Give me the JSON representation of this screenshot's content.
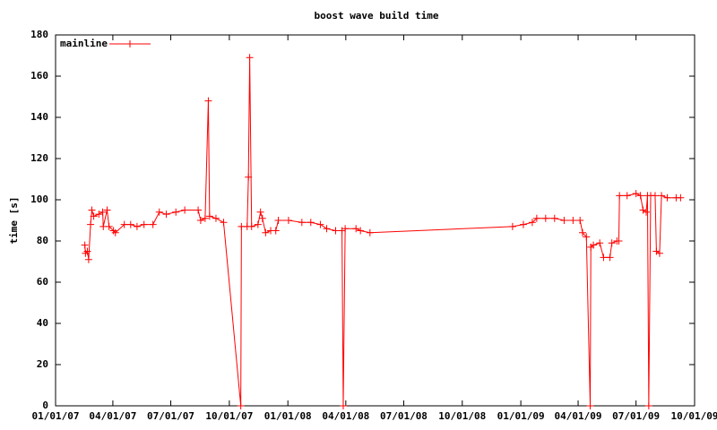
{
  "chart_data": {
    "type": "line",
    "title": "boost wave build time",
    "y_label": "time [s]",
    "x": [
      "02/16/07",
      "02/17/07",
      "02/20/07",
      "02/22/07",
      "02/25/07",
      "02/27/07",
      "03/02/07",
      "03/10/07",
      "03/16/07",
      "03/17/07",
      "03/23/07",
      "03/26/07",
      "04/02/07",
      "04/05/07",
      "04/19/07",
      "04/29/07",
      "05/09/07",
      "05/20/07",
      "06/03/07",
      "06/13/07",
      "06/24/07",
      "07/09/07",
      "07/23/07",
      "08/13/07",
      "08/17/07",
      "08/24/07",
      "08/29/07",
      "08/31/07",
      "09/10/07",
      "09/22/07",
      "10/19/07",
      "10/20/07",
      "10/29/07",
      "10/31/07",
      "11/02/07",
      "11/05/07",
      "11/15/07",
      "11/19/07",
      "11/22/07",
      "11/27/07",
      "12/05/07",
      "12/13/07",
      "12/17/07",
      "01/02/08",
      "01/23/08",
      "02/06/08",
      "02/21/08",
      "03/02/08",
      "03/16/08",
      "03/26/08",
      "03/28/08",
      "03/31/08",
      "04/17/08",
      "04/24/08",
      "05/09/08",
      "12/19/08",
      "01/05/09",
      "01/19/09",
      "01/26/09",
      "02/09/09",
      "02/23/09",
      "03/10/09",
      "03/24/09",
      "04/04/09",
      "04/08/09",
      "04/14/09",
      "04/20/09",
      "04/21/09",
      "04/25/09",
      "05/05/09",
      "05/11/09",
      "05/21/09",
      "05/24/09",
      "06/01/09",
      "06/04/09",
      "06/05/09",
      "06/17/09",
      "07/01/09",
      "07/08/09",
      "07/12/09",
      "07/17/09",
      "07/19/09",
      "07/21/09",
      "07/24/09",
      "07/31/09",
      "08/02/09",
      "08/07/09",
      "08/10/09",
      "08/19/09",
      "09/02/09",
      "09/09/09"
    ],
    "series": [
      {
        "name": "mainline",
        "color": "#ff0000",
        "values": [
          78,
          74,
          75,
          71,
          88,
          95,
          92,
          93,
          94,
          87,
          95,
          87,
          85,
          84,
          88,
          88,
          87,
          88,
          88,
          94,
          93,
          94,
          95,
          95,
          90,
          91,
          148,
          92,
          91,
          89,
          0,
          87,
          87,
          111,
          169,
          87,
          88,
          94,
          91,
          84,
          85,
          85,
          90,
          90,
          89,
          89,
          88,
          86,
          85,
          85,
          0,
          86,
          86,
          85,
          84,
          87,
          88,
          89,
          91,
          91,
          91,
          90,
          90,
          90,
          84,
          82,
          0,
          77,
          78,
          79,
          72,
          72,
          79,
          80,
          80,
          102,
          102,
          103,
          102,
          95,
          94,
          102,
          0,
          102,
          102,
          75,
          74,
          102,
          101,
          101,
          101
        ]
      }
    ],
    "xlim": [
      "01/01/07",
      "10/01/09"
    ],
    "xticks": [
      "01/01/07",
      "04/01/07",
      "07/01/07",
      "10/01/07",
      "01/01/08",
      "04/01/08",
      "07/01/08",
      "10/01/08",
      "01/01/09",
      "04/01/09",
      "07/01/09",
      "10/01/09"
    ],
    "ylim": [
      0,
      180
    ],
    "yticks": [
      0,
      20,
      40,
      60,
      80,
      100,
      120,
      140,
      160,
      180
    ],
    "legend": "top-left"
  }
}
